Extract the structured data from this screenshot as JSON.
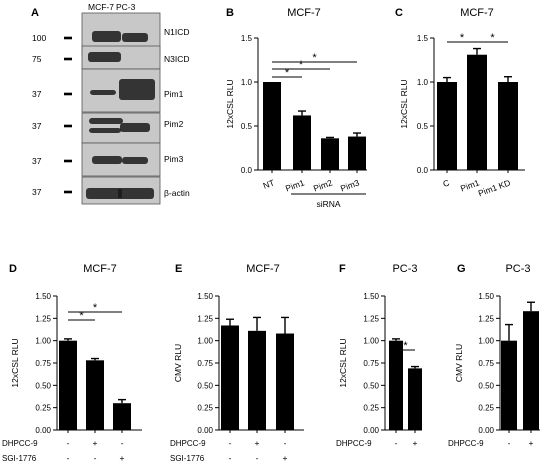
{
  "panels": [
    {
      "letter": "A"
    },
    {
      "letter": "B"
    },
    {
      "letter": "C"
    },
    {
      "letter": "D"
    },
    {
      "letter": "E"
    },
    {
      "letter": "F"
    },
    {
      "letter": "G"
    }
  ],
  "blot": {
    "lanes": [
      "MCF-7",
      "PC-3"
    ],
    "rows": [
      {
        "mw": "100",
        "label": "N1ICD"
      },
      {
        "mw": "75",
        "label": "N3ICD"
      },
      {
        "mw": "37",
        "label": "Pim1"
      },
      {
        "mw": "37",
        "label": "Pim2"
      },
      {
        "mw": "37",
        "label": "Pim3"
      },
      {
        "mw": "37",
        "label": "β-actin"
      }
    ]
  },
  "chart_data": [
    {
      "panel": "B",
      "type": "bar",
      "title": "MCF-7",
      "ylabel": "12xCSL RLU",
      "ylim": [
        0,
        1.5
      ],
      "yticks": [
        "0.0",
        "0.5",
        "1.0",
        "1.5"
      ],
      "categories": [
        "NT",
        "Pim1",
        "Pim2",
        "Pim3"
      ],
      "values": [
        1.0,
        0.62,
        0.36,
        0.38
      ],
      "errors": [
        0.0,
        0.05,
        0.01,
        0.04
      ],
      "group_label": "siRNA",
      "significance": [
        "*",
        "*",
        "*"
      ]
    },
    {
      "panel": "C",
      "type": "bar",
      "title": "MCF-7",
      "ylabel": "12xCSL RLU",
      "ylim": [
        0,
        1.5
      ],
      "yticks": [
        "0.0",
        "0.5",
        "1.0",
        "1.5"
      ],
      "categories": [
        "C",
        "Pim1",
        "Pim1 KD"
      ],
      "values": [
        1.0,
        1.31,
        1.0
      ],
      "errors": [
        0.05,
        0.07,
        0.06
      ],
      "significance": [
        "*",
        "*"
      ]
    },
    {
      "panel": "D",
      "type": "bar",
      "title": "MCF-7",
      "ylabel": "12xCSL RLU",
      "ylim": [
        0,
        1.5
      ],
      "yticks": [
        "0.00",
        "0.25",
        "0.50",
        "0.75",
        "1.00",
        "1.25",
        "1.50"
      ],
      "values": [
        1.0,
        0.78,
        0.3
      ],
      "errors": [
        0.02,
        0.02,
        0.04
      ],
      "conditions": [
        {
          "name": "DHPCC-9",
          "marks": [
            "-",
            "+",
            "-"
          ]
        },
        {
          "name": "SGI-1776",
          "marks": [
            "-",
            "-",
            "+"
          ]
        }
      ],
      "significance": [
        "*",
        "*"
      ]
    },
    {
      "panel": "E",
      "type": "bar",
      "title": "MCF-7",
      "ylabel": "CMV RLU",
      "ylim": [
        0,
        1.5
      ],
      "yticks": [
        "0.00",
        "0.25",
        "0.50",
        "0.75",
        "1.00",
        "1.25",
        "1.50"
      ],
      "values": [
        1.17,
        1.11,
        1.08
      ],
      "errors": [
        0.07,
        0.15,
        0.18
      ],
      "conditions": [
        {
          "name": "DHPCC-9",
          "marks": [
            "-",
            "+",
            "-"
          ]
        },
        {
          "name": "SGI-1776",
          "marks": [
            "-",
            "-",
            "+"
          ]
        }
      ],
      "significance": []
    },
    {
      "panel": "F",
      "type": "bar",
      "title": "PC-3",
      "ylabel": "12xCSL RLU",
      "ylim": [
        0,
        1.5
      ],
      "yticks": [
        "0.00",
        "0.25",
        "0.50",
        "0.75",
        "1.00",
        "1.25",
        "1.50"
      ],
      "values": [
        1.0,
        0.69
      ],
      "errors": [
        0.02,
        0.02
      ],
      "conditions": [
        {
          "name": "DHPCC-9",
          "marks": [
            "-",
            "+"
          ]
        }
      ],
      "significance": [
        "*"
      ]
    },
    {
      "panel": "G",
      "type": "bar",
      "title": "PC-3",
      "ylabel": "CMV RLU",
      "ylim": [
        0,
        1.5
      ],
      "yticks": [
        "0.00",
        "0.25",
        "0.50",
        "0.75",
        "1.00",
        "1.25",
        "1.50"
      ],
      "values": [
        1.0,
        1.33
      ],
      "errors": [
        0.18,
        0.1
      ],
      "conditions": [
        {
          "name": "DHPCC-9",
          "marks": [
            "-",
            "+"
          ]
        }
      ],
      "significance": []
    }
  ]
}
